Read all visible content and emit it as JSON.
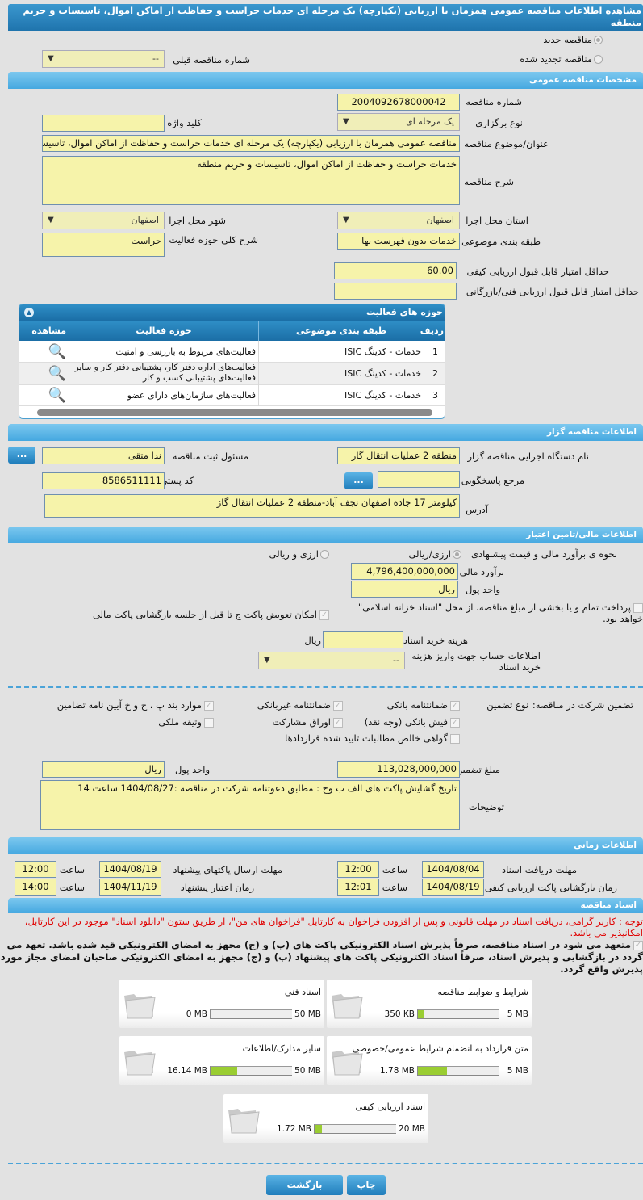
{
  "title": "مشاهده اطلاعات مناقصه عمومی همزمان با ارزیابی (یکپارچه) یک مرحله ای خدمات حراست و حفاظت از اماکن اموال، تاسیسات و حریم منطقه",
  "tender_type": {
    "new": "مناقصه جدید",
    "renewed": "مناقصه تجدید شده",
    "prev_label": "شماره مناقصه قبلی",
    "prev_value": "--"
  },
  "general": {
    "header": "مشخصات مناقصه عمومی",
    "number_label": "شماره مناقصه",
    "number": "2004092678000042",
    "keyword_label": "کلید واژه",
    "keyword": "",
    "type_label": "نوع برگزاری",
    "type": "یک مرحله ای",
    "subject_label": "عنوان/موضوع مناقصه",
    "subject": "مناقصه عمومی همزمان با ارزیابی (یکپارچه) یک مرحله ای خدمات حراست و حفاظت از اماکن اموال، تاسیسات و حریم منطقه",
    "desc_label": "شرح مناقصه",
    "desc": "خدمات حراست و حفاظت از اماکن اموال، تاسیسات و حریم منطقه",
    "province_label": "استان محل اجرا",
    "province": "اصفهان",
    "city_label": "شهر محل اجرا",
    "city": "اصفهان",
    "category_label": "طبقه بندی موضوعی",
    "category": "خدمات بدون فهرست بها",
    "scope_label": "شرح کلی حوزه فعالیت",
    "scope": "حراست",
    "min_quality_label": "حداقل امتیاز قابل قبول ارزیابی کیفی",
    "min_quality": "60.00",
    "min_tech_label": "حداقل امتیاز قابل قبول ارزیابی فنی/بازرگانی",
    "min_tech": ""
  },
  "activities": {
    "header": "حوزه های فعالیت",
    "columns": [
      "ردیف",
      "طبقه بندی موضوعی",
      "حوزه فعالیت",
      "مشاهده"
    ],
    "rows": [
      {
        "n": "1",
        "cat": "خدمات - کدینگ ISIC",
        "area": "فعالیت‌های مربوط به بازرسی و امنیت"
      },
      {
        "n": "2",
        "cat": "خدمات - کدینگ ISIC",
        "area": "فعالیت‌های  اداره دفتر کار، پشتیبانی دفتر کار و سایر  فعالیت‌های پشتیبانی کسب و کار"
      },
      {
        "n": "3",
        "cat": "خدمات - کدینگ ISIC",
        "area": "فعالیت‌های سازمان‌های دارای عضو"
      }
    ]
  },
  "organizer": {
    "header": "اطلاعات مناقصه گزار",
    "org_label": "نام دستگاه اجرایی مناقصه گزار",
    "org": "منطقه 2 عملیات انتقال گاز",
    "registrar_label": "مسئول ثبت مناقصه",
    "registrar": "ندا متقی",
    "ref_label": "مرجع پاسخگویی",
    "ref": "",
    "postal_label": "کد پستی",
    "postal": "8586511111",
    "address_label": "آدرس",
    "address": "کیلومتر 17 جاده اصفهان نجف آباد-منطقه 2 عملیات انتقال گاز",
    "more_button": "..."
  },
  "finance": {
    "header": "اطلاعات مالی/تامین اعتبار",
    "method_label": "نحوه ی برآورد مالی و قیمت پیشنهادی",
    "opt1": "ارزی/ریالی",
    "opt2": "ارزی و ریالی",
    "estimate_label": "برآورد مالی",
    "estimate": "4,796,400,000,000",
    "currency_label": "واحد پول",
    "currency": "ریال",
    "treasury": "پرداخت تمام و یا بخشی از مبلغ مناقصه، از محل \"اسناد خزانه اسلامی\" خواهد بود.",
    "swap": "امکان تعویض پاکت ج تا قبل از جلسه بازگشایی پاکت مالی",
    "doc_cost_label": "هزینه خرید اسناد",
    "doc_cost": "",
    "doc_cost_unit": "ریال",
    "account_label": "اطلاعات حساب جهت واریز هزینه خرید اسناد",
    "account": "--"
  },
  "guarantee": {
    "label": "تضمین شرکت در مناقصه:",
    "type_label": "نوع تضمین",
    "options": [
      {
        "label": "ضمانتنامه بانکی",
        "checked": true
      },
      {
        "label": "ضمانتنامه غیربانکی",
        "checked": true
      },
      {
        "label": "موارد بند پ ، ح و خ آیین نامه تضامین",
        "checked": true
      },
      {
        "label": "فیش بانکی (وجه نقد)",
        "checked": true
      },
      {
        "label": "اوراق مشارکت",
        "checked": true
      },
      {
        "label": "وثیقه ملکی",
        "checked": false
      },
      {
        "label": "گواهی خالص مطالبات تایید شده قراردادها",
        "checked": false
      }
    ],
    "amount_label": "مبلغ تضمین",
    "amount": "113,028,000,000",
    "currency_label": "واحد پول",
    "currency": "ریال",
    "notes_label": "توضیحات",
    "notes": "تاریخ گشایش پاکت های الف ب وج : مطابق دعوتنامه شرکت در مناقصه :1404/08/27 ساعت 14"
  },
  "timing": {
    "header": "اطلاعات زمانی",
    "hour_label": "ساعت",
    "doc_deadline_label": "مهلت دریافت اسناد",
    "doc_deadline": "1404/08/04",
    "doc_deadline_time": "12:00",
    "submit_deadline_label": "مهلت ارسال پاکتهای پیشنهاد",
    "submit_deadline": "1404/08/19",
    "submit_deadline_time": "12:00",
    "opening_label": "زمان بازگشایی پاکت ارزیابی کیفی",
    "opening": "1404/08/19",
    "opening_time": "12:01",
    "validity_label": "زمان اعتبار پیشنهاد",
    "validity": "1404/11/19",
    "validity_time": "14:00"
  },
  "documents": {
    "header": "اسناد مناقصه",
    "notice": "توجه : کاربر گرامی، دریافت اسناد در مهلت قانونی و پس از افزودن فراخوان به کارتابل \"فراخوان های من\"، از طریق ستون \"دانلود اسناد\" موجود در این کارتابل، امکانپذیر می باشد.",
    "commitment": "متعهد می شود در اسناد مناقصه، صرفاً پذیرش اسناد الکترونیکی پاکت های (ب) و (ج) مجهز به امضای الکترونیکی قید شده باشد. تعهد می گردد در بازگشایی و پذیرش اسناد، صرفاً اسناد الکترونیکی پاکت های پیشنهاد (ب) و (ج) مجهز به امضای الکترونیکی صاحبان امضای مجاز مورد پذیرش واقع گردد.",
    "files": [
      {
        "name": "شرایط و ضوابط مناقصه",
        "used": "350 KB",
        "max": "5 MB",
        "fraction": 0.07
      },
      {
        "name": "اسناد فنی",
        "used": "0 MB",
        "max": "50 MB",
        "fraction": 0
      },
      {
        "name": "متن قرارداد به انضمام شرایط عمومی/خصوصی",
        "used": "1.78 MB",
        "max": "5 MB",
        "fraction": 0.356
      },
      {
        "name": "سایر مدارک/اطلاعات",
        "used": "16.14 MB",
        "max": "50 MB",
        "fraction": 0.323
      },
      {
        "name": "اسناد ارزیابی کیفی",
        "used": "1.72 MB",
        "max": "20 MB",
        "fraction": 0.086
      }
    ]
  },
  "actions": {
    "print": "چاپ",
    "back": "بازگشت"
  },
  "colors": {
    "header": "#1f74ad",
    "section": "#45a8e0",
    "field": "#f6f3aa",
    "progress": "#9acd32",
    "notice": "#e00000"
  }
}
